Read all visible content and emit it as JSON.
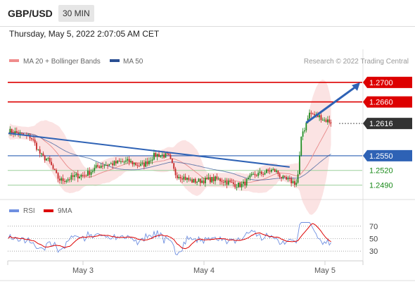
{
  "header": {
    "pair": "GBP/USD",
    "timeframe": "30 MIN",
    "datetime": "Thursday, May 5, 2022 2:07:05 AM CET"
  },
  "legend": {
    "ma20": "MA 20 + Bollinger Bands",
    "ma50": "MA 50",
    "source": "Research © 2022 Trading Central",
    "rsi": "RSI",
    "ma9": "9MA"
  },
  "colors": {
    "resistance": "#dd0000",
    "support": "#2e62b5",
    "current": "#333333",
    "target": "#2e62b5",
    "support_green": "#1a8a1a",
    "candle_up": "#1f8a1f",
    "candle_down": "#c62828",
    "bollinger": "#f7c1c1",
    "ma50": "#2a4f93",
    "rsi": "#6f8fe0",
    "rsi_ma": "#dd0000"
  },
  "chart_data": [
    {
      "type": "candlestick",
      "title": "",
      "ylim": [
        1.2462,
        1.273
      ],
      "x_tick_labels": [
        "May 3",
        "May 4",
        "May 5"
      ],
      "price_levels": [
        {
          "value": 1.27,
          "label": "1.2700",
          "kind": "resistance"
        },
        {
          "value": 1.266,
          "label": "1.2660",
          "kind": "resistance"
        },
        {
          "value": 1.2616,
          "label": "1.2616",
          "kind": "current"
        },
        {
          "value": 1.255,
          "label": "1.2550",
          "kind": "pivot"
        },
        {
          "value": 1.252,
          "label": "1.2520",
          "kind": "support"
        },
        {
          "value": 1.249,
          "label": "1.2490",
          "kind": "support"
        }
      ],
      "trendline": {
        "from": [
          0,
          1.2596
        ],
        "to": [
          170,
          1.2527
        ]
      },
      "target_arrow": {
        "from": [
          180,
          1.2616
        ],
        "to": [
          196,
          1.27
        ]
      }
    },
    {
      "type": "line",
      "title": "",
      "series": [
        {
          "name": "RSI"
        },
        {
          "name": "9MA"
        }
      ],
      "ylim": [
        20,
        80
      ],
      "levels": [
        70,
        50,
        30
      ]
    }
  ]
}
